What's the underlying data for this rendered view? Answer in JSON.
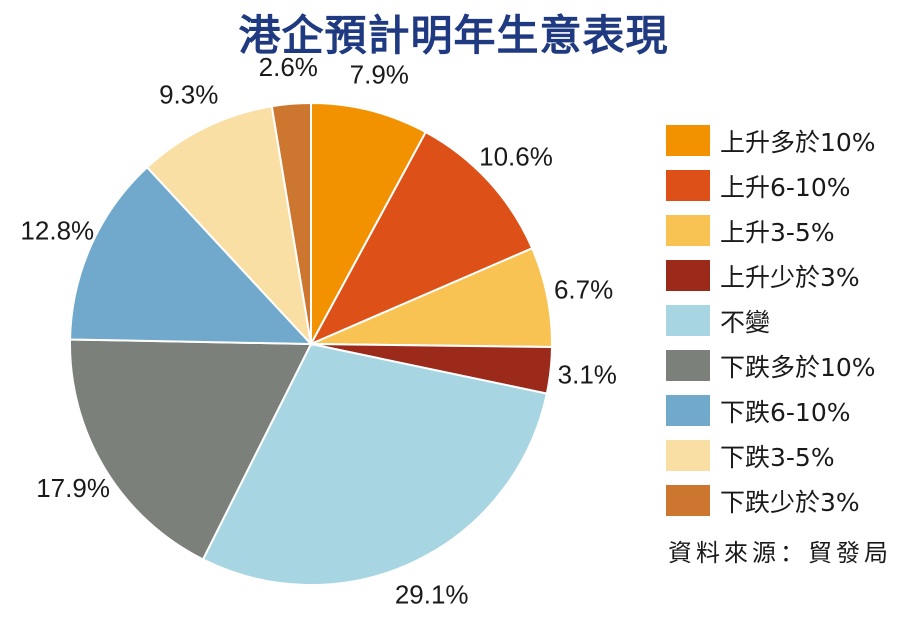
{
  "chart_data": {
    "type": "pie",
    "title": "港企預計明年生意表現",
    "legend_position": "right",
    "slices": [
      {
        "label": "上升多於10%",
        "value": 7.9,
        "value_label": "7.9%",
        "color": "#f39200"
      },
      {
        "label": "上升6-10%",
        "value": 10.6,
        "value_label": "10.6%",
        "color": "#dd5118"
      },
      {
        "label": "上升3-5%",
        "value": 6.7,
        "value_label": "6.7%",
        "color": "#f8c352"
      },
      {
        "label": "上升少於3%",
        "value": 3.1,
        "value_label": "3.1%",
        "color": "#9b2a1a"
      },
      {
        "label": "不變",
        "value": 29.1,
        "value_label": "29.1%",
        "color": "#a8d5e2"
      },
      {
        "label": "下跌多於10%",
        "value": 17.9,
        "value_label": "17.9%",
        "color": "#7b807a"
      },
      {
        "label": "下跌6-10%",
        "value": 12.8,
        "value_label": "12.8%",
        "color": "#70a9cc"
      },
      {
        "label": "下跌3-5%",
        "value": 9.3,
        "value_label": "9.3%",
        "color": "#fadfa5"
      },
      {
        "label": "下跌少於3%",
        "value": 2.6,
        "value_label": "2.6%",
        "color": "#cc7630"
      }
    ]
  },
  "source": "資料來源：貿發局"
}
